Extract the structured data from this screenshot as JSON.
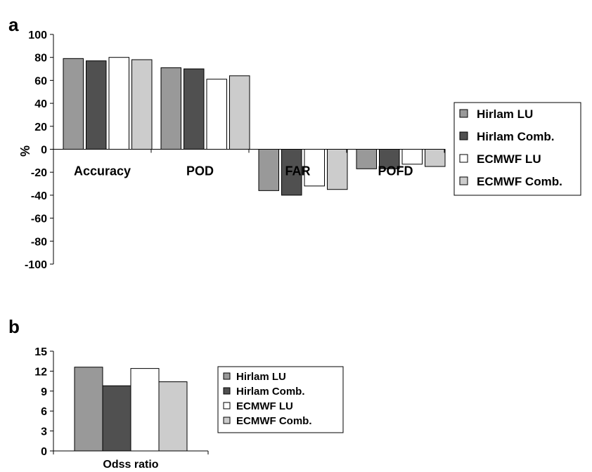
{
  "colors": {
    "Hirlam LU": "#999999",
    "Hirlam Comb.": "#505050",
    "ECMWF LU": "#ffffff",
    "ECMWF Comb.": "#cccccc"
  },
  "chart_data": [
    {
      "panel": "a",
      "type": "bar",
      "ylabel": "%",
      "ylim": [
        -100,
        100
      ],
      "yticks": [
        100,
        80,
        60,
        40,
        20,
        0,
        -20,
        -40,
        -60,
        -80,
        -100
      ],
      "categories": [
        "Accuracy",
        "POD",
        "FAR",
        "POFD"
      ],
      "series": [
        {
          "name": "Hirlam LU",
          "values": [
            79,
            71,
            -36,
            -17
          ]
        },
        {
          "name": "Hirlam Comb.",
          "values": [
            77,
            70,
            -40,
            -17
          ]
        },
        {
          "name": "ECMWF LU",
          "values": [
            80,
            61,
            -32,
            -13
          ]
        },
        {
          "name": "ECMWF Comb.",
          "values": [
            78,
            64,
            -35,
            -15
          ]
        }
      ],
      "legend": "right",
      "grid": false
    },
    {
      "panel": "b",
      "type": "bar",
      "ylim": [
        0,
        15
      ],
      "yticks": [
        15,
        12,
        9,
        6,
        3,
        0
      ],
      "categories": [
        "Odss ratio"
      ],
      "series": [
        {
          "name": "Hirlam LU",
          "values": [
            12.6
          ]
        },
        {
          "name": "Hirlam Comb.",
          "values": [
            9.8
          ]
        },
        {
          "name": "ECMWF LU",
          "values": [
            12.4
          ]
        },
        {
          "name": "ECMWF Comb.",
          "values": [
            10.4
          ]
        }
      ],
      "legend": "right",
      "grid": false
    }
  ]
}
